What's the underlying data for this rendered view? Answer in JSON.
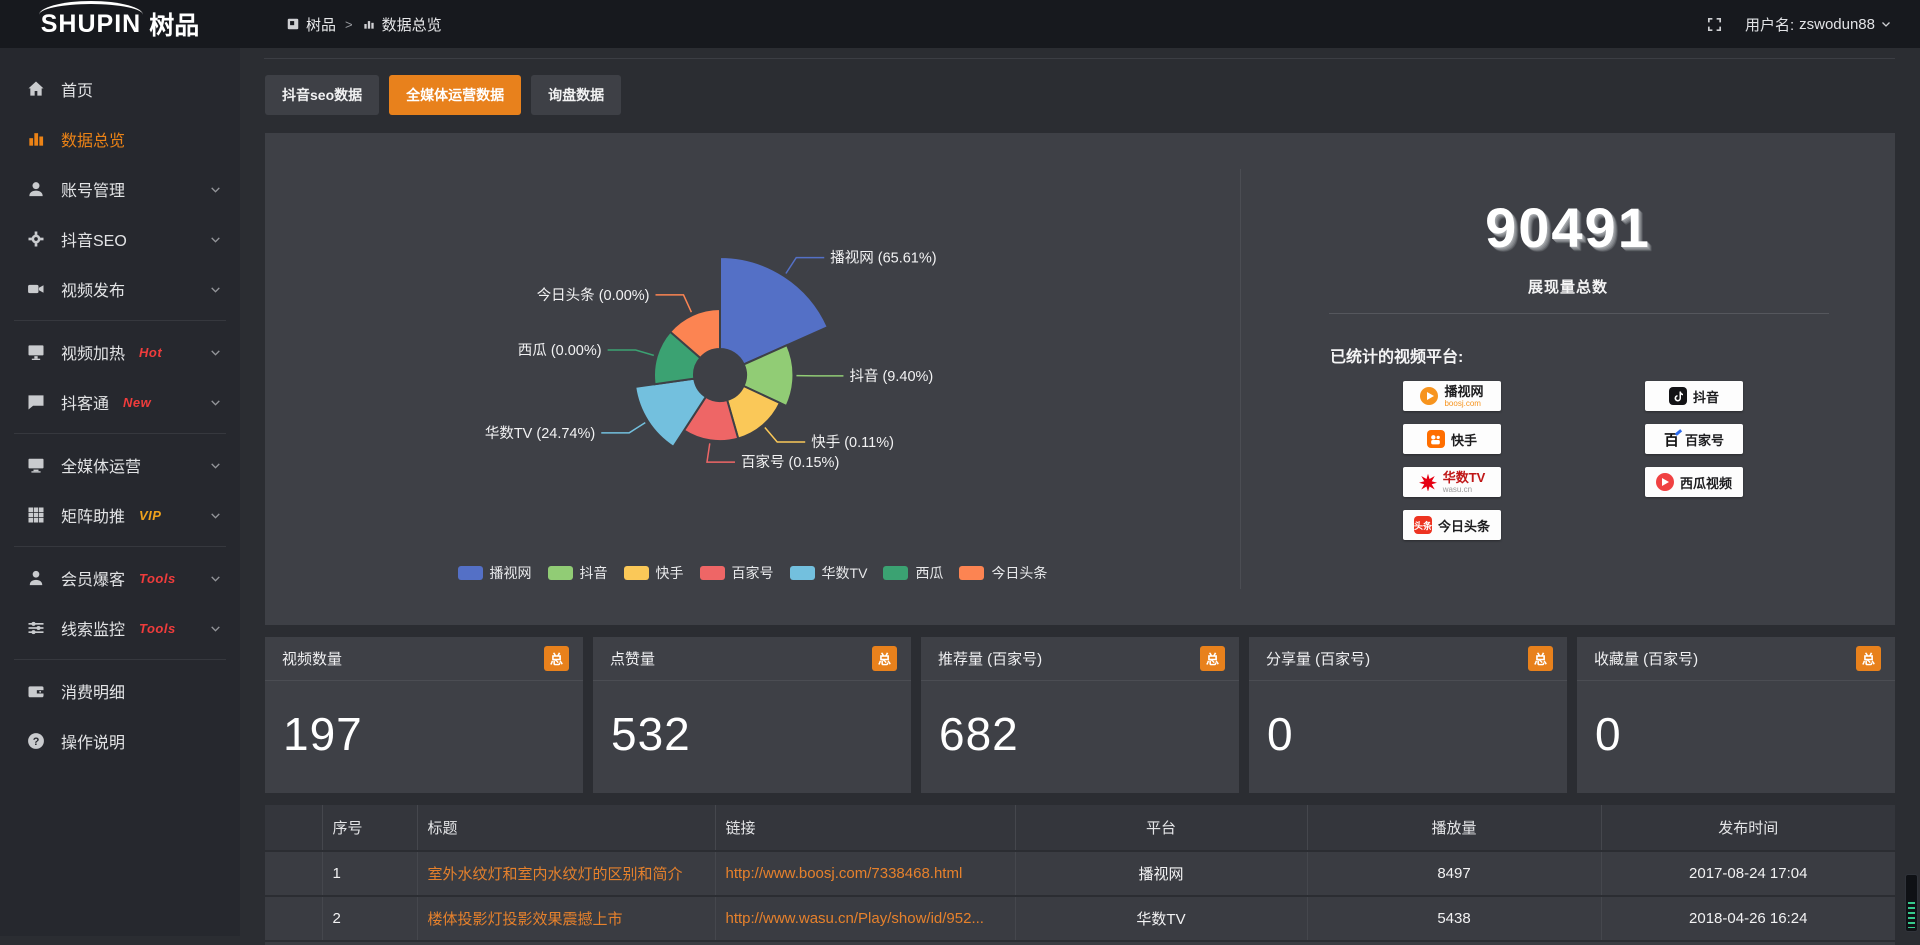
{
  "accent_color": "#e8811c",
  "topbar": {
    "logo_en": "SHUPIN",
    "logo_cn": "树品",
    "breadcrumb": [
      "树品",
      "数据总览"
    ],
    "breadcrumb_sep": ">",
    "username_label": "用户名:",
    "username": "zswodun88"
  },
  "sidebar": {
    "items": [
      {
        "label": "首页",
        "icon": "home-icon"
      },
      {
        "label": "数据总览",
        "icon": "bar-chart-icon",
        "active": true
      },
      {
        "label": "账号管理",
        "icon": "user-icon",
        "chevron": true
      },
      {
        "label": "抖音SEO",
        "icon": "gear-icon",
        "chevron": true
      },
      {
        "label": "视频发布",
        "icon": "video-icon",
        "chevron": true
      },
      {
        "divider": true
      },
      {
        "label": "视频加热",
        "icon": "monitor-icon",
        "tag": "Hot",
        "tag_color": "#f03c3c",
        "chevron": true
      },
      {
        "label": "抖客通",
        "icon": "chat-icon",
        "tag": "New",
        "tag_color": "#f03c3c",
        "chevron": true
      },
      {
        "divider": true
      },
      {
        "label": "全媒体运营",
        "icon": "desktop-icon",
        "chevron": true
      },
      {
        "label": "矩阵助推",
        "icon": "grid-icon",
        "tag": "VIP",
        "tag_color": "#f0a21c",
        "chevron": true
      },
      {
        "divider": true
      },
      {
        "label": "会员爆客",
        "icon": "member-icon",
        "tag": "Tools",
        "tag_color": "#f03c3c",
        "chevron": true
      },
      {
        "label": "线索监控",
        "icon": "sliders-icon",
        "tag": "Tools",
        "tag_color": "#f03c3c",
        "chevron": true
      },
      {
        "divider": true
      },
      {
        "label": "消费明细",
        "icon": "wallet-icon"
      },
      {
        "label": "操作说明",
        "icon": "help-icon"
      }
    ]
  },
  "tabs": [
    {
      "label": "抖音seo数据",
      "active": false
    },
    {
      "label": "全媒体运营数据",
      "active": true
    },
    {
      "label": "询盘数据",
      "active": false
    }
  ],
  "chart_data": {
    "type": "pie",
    "variant": "nightingale-rose",
    "unit": "%",
    "label_format": "{name} ({value}%)",
    "legend_position": "bottom",
    "items": [
      {
        "label": "播视网",
        "value": 65.61,
        "color": "#5470c6"
      },
      {
        "label": "抖音",
        "value": 9.4,
        "color": "#91cc75"
      },
      {
        "label": "快手",
        "value": 0.11,
        "color": "#fac858"
      },
      {
        "label": "百家号",
        "value": 0.15,
        "color": "#ee6666"
      },
      {
        "label": "华数TV",
        "value": 24.74,
        "color": "#73c0de"
      },
      {
        "label": "西瓜",
        "value": 0.0,
        "color": "#3ba272"
      },
      {
        "label": "今日头条",
        "value": 0.0,
        "color": "#fc8452"
      }
    ]
  },
  "overview": {
    "total_value": "90491",
    "total_label": "展现量总数",
    "platforms_label": "已统计的视频平台:",
    "platform_columns": [
      [
        {
          "name": "播视网",
          "sub": "boosj.com",
          "sub_color": "#f7941e",
          "icon": "boosj-icon"
        },
        {
          "name": "快手",
          "icon": "kuaishou-icon"
        },
        {
          "name": "华数TV",
          "sub": "wasu.cn",
          "sub_color": "#9a9a9a",
          "icon": "wasu-icon",
          "name_color": "#c01818"
        },
        {
          "name": "今日头条",
          "icon": "toutiao-icon"
        }
      ],
      [
        {
          "name": "抖音",
          "icon": "douyin-icon"
        },
        {
          "name": "百家号",
          "icon": "baijiahao-icon"
        },
        {
          "name": "西瓜视频",
          "icon": "xigua-icon"
        }
      ]
    ]
  },
  "cards": [
    {
      "title": "视频数量",
      "badge": "总",
      "value": "197"
    },
    {
      "title": "点赞量",
      "badge": "总",
      "value": "532"
    },
    {
      "title": "推荐量 (百家号)",
      "badge": "总",
      "value": "682"
    },
    {
      "title": "分享量 (百家号)",
      "badge": "总",
      "value": "0"
    },
    {
      "title": "收藏量 (百家号)",
      "badge": "总",
      "value": "0"
    }
  ],
  "table": {
    "columns": [
      "序号",
      "标题",
      "链接",
      "平台",
      "播放量",
      "发布时间"
    ],
    "rows": [
      {
        "no": "1",
        "title": "室外水纹灯和室内水纹灯的区别和简介",
        "link": "http://www.boosj.com/7338468.html",
        "platform": "播视网",
        "plays": "8497",
        "time": "2017-08-24 17:04"
      },
      {
        "no": "2",
        "title": "楼体投影灯投影效果震撼上市",
        "link": "http://www.wasu.cn/Play/show/id/952...",
        "platform": "华数TV",
        "plays": "5438",
        "time": "2018-04-26 16:24"
      }
    ]
  }
}
